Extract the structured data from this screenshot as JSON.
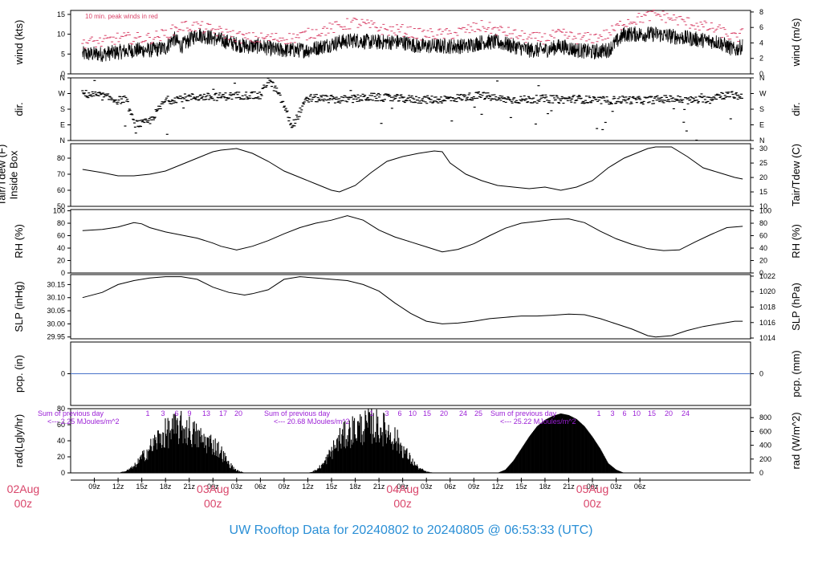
{
  "title": "UW Rooftop Data for 20240802  to  20240805 @ 06:53:33  (UTC)",
  "colors": {
    "accent_red": "#d9456a",
    "accent_magenta": "#9b1fd6",
    "title_blue": "#2a8fd6",
    "precip_line": "#4a74c9",
    "series": "#000000"
  },
  "x_axis": {
    "hour_labels": [
      "09z",
      "12z",
      "15z",
      "18z",
      "21z",
      "00z",
      "03z",
      "06z",
      "09z",
      "12z",
      "15z",
      "18z",
      "21z",
      "00z",
      "03z",
      "06z",
      "09z",
      "12z",
      "15z",
      "18z",
      "21z",
      "00z",
      "03z",
      "06z"
    ],
    "date_labels": [
      {
        "date": "02Aug",
        "hour": "00z"
      },
      {
        "date": "03Aug",
        "hour": "00z"
      },
      {
        "date": "04Aug",
        "hour": "00z"
      },
      {
        "date": "05Aug",
        "hour": "00z"
      }
    ]
  },
  "chart_data": [
    {
      "type": "line",
      "name": "wind",
      "ylabel_left": "wind (kts)",
      "ylabel_right": "wind (m/s)",
      "yticks_left": [
        "0",
        "5",
        "10",
        "15"
      ],
      "ylim_left": [
        0,
        16
      ],
      "yticks_right": [
        "0",
        "2",
        "4",
        "6",
        "8"
      ],
      "ylim_right": [
        0,
        8.2
      ],
      "annotation": "10 min. peak winds in red",
      "series": [
        {
          "name": "wind speed",
          "color": "#000000",
          "x": [
            7.5,
            10,
            12,
            14,
            16,
            18,
            19,
            20,
            22,
            24,
            26,
            28,
            30,
            32,
            34,
            36,
            38,
            40,
            42,
            44,
            46,
            48,
            50,
            52,
            54,
            56,
            58,
            60,
            62,
            64,
            66,
            68,
            70,
            72,
            74,
            76,
            78,
            80,
            82,
            84,
            86,
            88,
            90,
            91
          ],
          "y": [
            5,
            5,
            5.5,
            6,
            6,
            6.5,
            9,
            7,
            10,
            9,
            8,
            7,
            7,
            6,
            6,
            6,
            7,
            8,
            8.5,
            8,
            8,
            8,
            7,
            7,
            7,
            7,
            8,
            8,
            7,
            6,
            6,
            7,
            6,
            5.5,
            6,
            10,
            10,
            10,
            9.5,
            9,
            8.5,
            8,
            6,
            7
          ]
        },
        {
          "name": "10 min. peak",
          "color": "#d9456a",
          "x": [
            7.5,
            10,
            12,
            14,
            16,
            18,
            20,
            22,
            24,
            26,
            28,
            30,
            32,
            34,
            36,
            38,
            40,
            42,
            44,
            46,
            48,
            50,
            52,
            54,
            56,
            58,
            60,
            62,
            64,
            66,
            68,
            70,
            72,
            74,
            76,
            78,
            80,
            82,
            84,
            86,
            88,
            90,
            91
          ],
          "y": [
            8,
            8,
            9,
            9,
            9,
            10,
            12,
            12,
            11,
            10,
            9,
            9,
            9,
            9,
            10,
            11,
            12,
            13,
            12,
            11,
            11,
            10,
            10,
            10,
            11,
            12,
            11,
            10,
            9,
            9,
            10,
            9,
            9,
            10,
            13,
            14,
            15,
            14,
            13,
            12,
            11,
            9,
            10
          ]
        }
      ]
    },
    {
      "type": "scatter",
      "name": "dir",
      "ylabel_left": "dir.",
      "ylabel_right": "dir.",
      "yticks": [
        "N",
        "E",
        "S",
        "W",
        "N"
      ],
      "ylim": [
        0,
        360
      ],
      "x": [
        7.5,
        10,
        12,
        13,
        14,
        15,
        16,
        18,
        20,
        22,
        24,
        26,
        28,
        30,
        31,
        32,
        33,
        34,
        36,
        38,
        40,
        42,
        44,
        46,
        48,
        50,
        52,
        54,
        56,
        58,
        60,
        62,
        64,
        66,
        68,
        70,
        72,
        74,
        76,
        78,
        80,
        82,
        84,
        86,
        88,
        90,
        91
      ],
      "y": [
        270,
        255,
        230,
        240,
        100,
        95,
        110,
        230,
        245,
        250,
        250,
        255,
        260,
        255,
        350,
        290,
        200,
        80,
        245,
        240,
        235,
        240,
        250,
        245,
        240,
        235,
        235,
        240,
        250,
        260,
        240,
        235,
        235,
        240,
        235,
        240,
        230,
        230,
        235,
        230,
        235,
        240,
        230,
        235,
        260,
        260,
        250
      ]
    },
    {
      "type": "line",
      "name": "temperature",
      "ylabel_left": "Tair/Tdew (F)\nInside Box",
      "ylabel_right": "Tair/Tdew (C)",
      "yticks_left": [
        "50",
        "60",
        "70",
        "80"
      ],
      "ylim_left": [
        50,
        89
      ],
      "yticks_right": [
        "10",
        "15",
        "20",
        "25",
        "30"
      ],
      "ylim_right": [
        10,
        31.7
      ],
      "x": [
        7.5,
        10,
        12,
        14,
        16,
        18,
        20,
        22,
        24,
        25,
        27,
        29,
        31,
        33,
        35,
        37,
        39,
        40,
        42,
        44,
        46,
        48,
        50,
        52,
        53,
        54,
        56,
        58,
        60,
        62,
        64,
        66,
        68,
        70,
        72,
        74,
        76,
        78,
        79,
        80,
        82,
        84,
        86,
        88,
        90,
        91
      ],
      "y": [
        73,
        71,
        69,
        69,
        70,
        72,
        76,
        80,
        84,
        85,
        86,
        83,
        78,
        72,
        68,
        64,
        60,
        59,
        63,
        71,
        78,
        81,
        83,
        84.5,
        84,
        77,
        70,
        66,
        63,
        62,
        61,
        62,
        60,
        62,
        66,
        74,
        80,
        84,
        86,
        87,
        87,
        81,
        74,
        71,
        68,
        67
      ]
    },
    {
      "type": "line",
      "name": "rh",
      "ylabel_left": "RH (%)",
      "ylabel_right": "RH (%)",
      "yticks": [
        "0",
        "20",
        "40",
        "60",
        "80",
        "100"
      ],
      "ylim": [
        0,
        102
      ],
      "x": [
        7.5,
        10,
        12,
        14,
        15,
        16,
        18,
        20,
        22,
        24,
        25,
        27,
        29,
        31,
        33,
        35,
        37,
        39,
        41,
        43,
        45,
        47,
        49,
        51,
        53,
        55,
        57,
        59,
        61,
        63,
        65,
        67,
        69,
        71,
        73,
        75,
        77,
        79,
        81,
        83,
        85,
        87,
        89,
        91
      ],
      "y": [
        68,
        70,
        74,
        81,
        79,
        73,
        66,
        61,
        56,
        48,
        43,
        37,
        43,
        52,
        63,
        73,
        80,
        85,
        92,
        85,
        69,
        58,
        50,
        42,
        34,
        38,
        47,
        60,
        72,
        80,
        83,
        86,
        87,
        81,
        67,
        55,
        46,
        39,
        36,
        37,
        50,
        62,
        73,
        75
      ]
    },
    {
      "type": "line",
      "name": "slp",
      "ylabel_left": "SLP (inHg)",
      "ylabel_right": "SLP (hPa)",
      "yticks_left": [
        "29.95",
        "30.00",
        "30.05",
        "30.10",
        "30.15"
      ],
      "ylim_left": [
        29.943,
        30.188
      ],
      "yticks_right": [
        "1014",
        "1016",
        "1018",
        "1020",
        "1022"
      ],
      "ylim_right": [
        1013.9,
        1022.2
      ],
      "x": [
        7.5,
        10,
        12,
        14,
        16,
        18,
        20,
        22,
        24,
        26,
        28,
        29,
        31,
        33,
        35,
        37,
        39,
        41,
        43,
        45,
        47,
        49,
        51,
        53,
        55,
        57,
        59,
        61,
        63,
        65,
        67,
        69,
        71,
        73,
        75,
        77,
        79,
        80,
        82,
        84,
        86,
        88,
        90,
        91
      ],
      "y": [
        30.1,
        30.12,
        30.15,
        30.165,
        30.175,
        30.18,
        30.18,
        30.17,
        30.14,
        30.12,
        30.11,
        30.115,
        30.13,
        30.17,
        30.18,
        30.175,
        30.17,
        30.165,
        30.15,
        30.125,
        30.08,
        30.04,
        30.01,
        30.0,
        30.003,
        30.01,
        30.02,
        30.025,
        30.03,
        30.03,
        30.033,
        30.037,
        30.035,
        30.02,
        30.0,
        29.98,
        29.955,
        29.95,
        29.955,
        29.975,
        29.99,
        30.0,
        30.01,
        30.01
      ]
    },
    {
      "type": "line",
      "name": "pcp",
      "ylabel_left": "pcp. (in)",
      "ylabel_right": "pcp. (mm)",
      "yticks_left": [
        "0"
      ],
      "yticks_right": [
        "0"
      ],
      "ylim": [
        -1,
        1
      ],
      "x": [
        6,
        92
      ],
      "y": [
        0,
        0
      ]
    },
    {
      "type": "area",
      "name": "radiation",
      "ylabel_left": "rad(Lgly/hr)",
      "ylabel_right": "rad (W/m^2)",
      "yticks_left": [
        "0",
        "20",
        "40",
        "60",
        "80"
      ],
      "ylim_left": [
        0,
        80
      ],
      "yticks_right": [
        "0",
        "200",
        "400",
        "600",
        "800"
      ],
      "ylim_right": [
        0,
        930
      ],
      "x": [
        12,
        13,
        14,
        15,
        16,
        17,
        18,
        19,
        20,
        21,
        22,
        23,
        24,
        25,
        26,
        27,
        28,
        36,
        37,
        38,
        39,
        40,
        41,
        42,
        43,
        44,
        45,
        46,
        47,
        48,
        49,
        50,
        51,
        52,
        60,
        61,
        62,
        63,
        64,
        65,
        66,
        67,
        68,
        69,
        70,
        71,
        72,
        73,
        74,
        75,
        76
      ],
      "y": [
        0,
        3,
        10,
        25,
        40,
        55,
        65,
        72,
        74,
        70,
        60,
        52,
        48,
        35,
        15,
        4,
        0,
        0,
        4,
        15,
        35,
        55,
        65,
        72,
        75,
        78,
        76,
        70,
        58,
        40,
        22,
        8,
        2,
        0,
        0,
        4,
        15,
        30,
        45,
        58,
        66,
        71,
        74,
        72,
        67,
        58,
        45,
        30,
        12,
        4,
        0
      ],
      "daily_notes": [
        {
          "line1": "Sum of previous day",
          "line2": "<--- 2.25 MJoules/m^2"
        },
        {
          "line1": "Sum of previous day",
          "line2": "<--- 20.68 MJoules/m^2"
        },
        {
          "line1": "Sum of previous day",
          "line2": "<--- 25.22 MJoules/m^2"
        }
      ],
      "hour_marks": [
        [
          "1",
          "3",
          "6",
          "9",
          "13",
          "17",
          "20"
        ],
        [
          "1",
          "3",
          "6",
          "10",
          "15",
          "20",
          "24",
          "25"
        ],
        [
          "1",
          "3",
          "6",
          "10",
          "15",
          "20",
          "24"
        ]
      ]
    }
  ]
}
